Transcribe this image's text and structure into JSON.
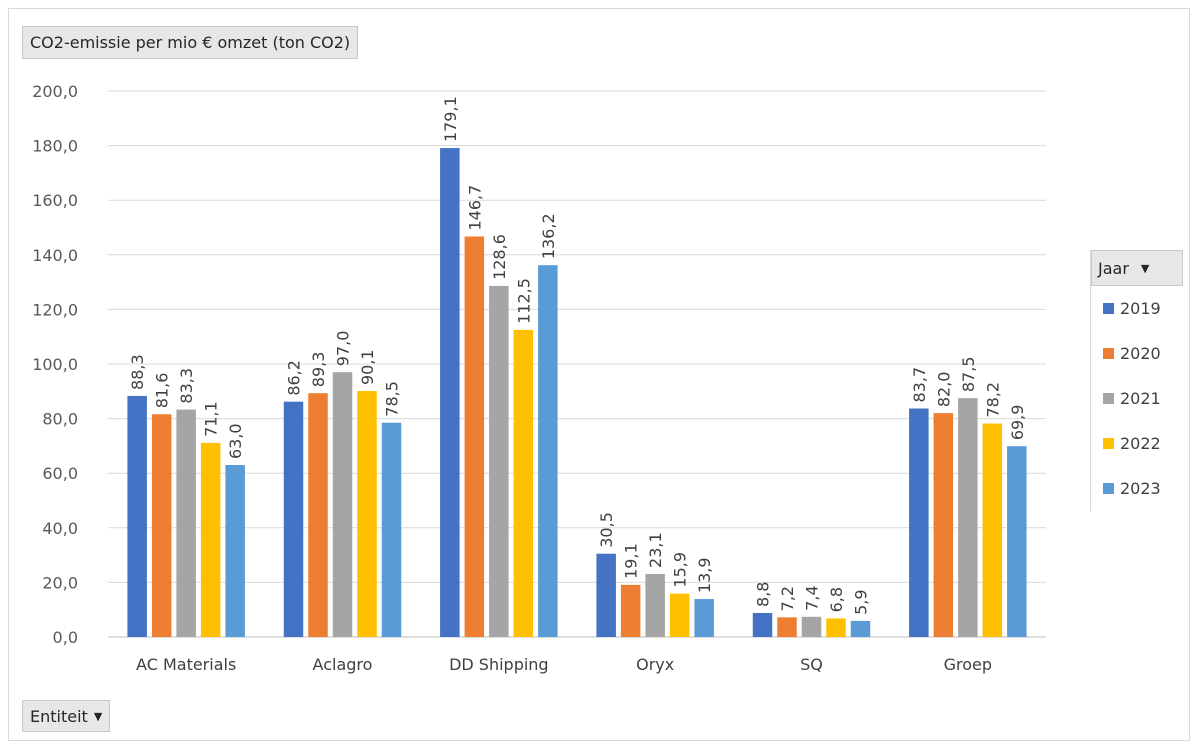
{
  "field_buttons": {
    "title": "CO2-emissie per mio  € omzet (ton CO2)",
    "axis_field": "Entiteit",
    "legend_field": "Jaar"
  },
  "icons": {
    "dropdown": "chevron-down-icon"
  },
  "chart_data": {
    "type": "bar",
    "categories": [
      "AC Materials",
      "Aclagro",
      "DD Shipping",
      "Oryx",
      "SQ",
      "Groep"
    ],
    "series": [
      {
        "name": "2019",
        "color": "#4472c4",
        "values": [
          88.3,
          86.2,
          179.1,
          30.5,
          8.8,
          83.7
        ],
        "labels": [
          "88,3",
          "86,2",
          "179,1",
          "30,5",
          "8,8",
          "83,7"
        ]
      },
      {
        "name": "2020",
        "color": "#ed7d31",
        "values": [
          81.6,
          89.3,
          146.7,
          19.1,
          7.2,
          82.0
        ],
        "labels": [
          "81,6",
          "89,3",
          "146,7",
          "19,1",
          "7,2",
          "82,0"
        ]
      },
      {
        "name": "2021",
        "color": "#a5a5a5",
        "values": [
          83.3,
          97.0,
          128.6,
          23.1,
          7.4,
          87.5
        ],
        "labels": [
          "83,3",
          "97,0",
          "128,6",
          "23,1",
          "7,4",
          "87,5"
        ]
      },
      {
        "name": "2022",
        "color": "#ffc000",
        "values": [
          71.1,
          90.1,
          112.5,
          15.9,
          6.8,
          78.2
        ],
        "labels": [
          "71,1",
          "90,1",
          "112,5",
          "15,9",
          "6,8",
          "78,2"
        ]
      },
      {
        "name": "2023",
        "color": "#5b9bd5",
        "values": [
          63.0,
          78.5,
          136.2,
          13.9,
          5.9,
          69.9
        ],
        "labels": [
          "63,0",
          "78,5",
          "136,2",
          "13,9",
          "5,9",
          "69,9"
        ]
      }
    ],
    "ylim": [
      0,
      200
    ],
    "yticks": [
      "0,0",
      "20,0",
      "40,0",
      "60,0",
      "80,0",
      "100,0",
      "120,0",
      "140,0",
      "160,0",
      "180,0",
      "200,0"
    ],
    "grid": true,
    "legend_position": "right"
  }
}
